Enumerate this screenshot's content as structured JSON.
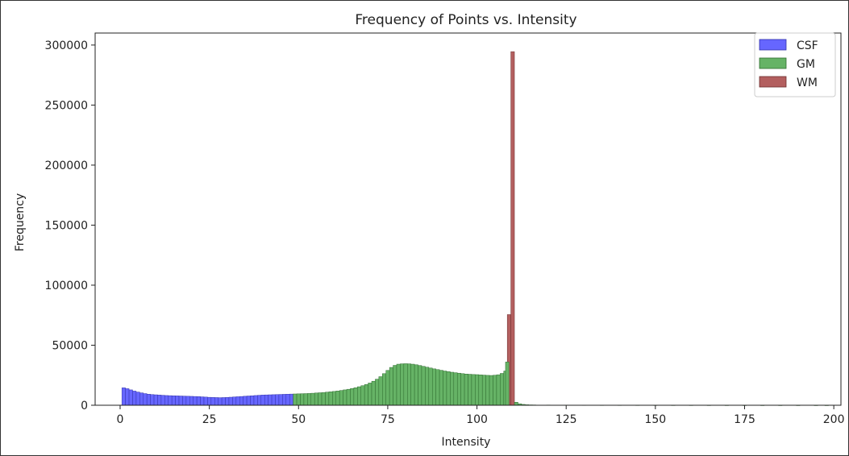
{
  "chart_data": {
    "type": "bar",
    "title": "Frequency of Points vs. Intensity",
    "xlabel": "Intensity",
    "ylabel": "Frequency",
    "xlim": [
      -7,
      202
    ],
    "ylim": [
      0,
      310000
    ],
    "xticks": [
      0,
      25,
      50,
      75,
      100,
      125,
      150,
      175,
      200
    ],
    "yticks": [
      0,
      50000,
      100000,
      150000,
      200000,
      250000,
      300000
    ],
    "legend_position": "top-right",
    "grid": false,
    "series": [
      {
        "name": "CSF",
        "color": "#6666ff",
        "edge": "#3333aa",
        "x": [
          1,
          2,
          3,
          4,
          5,
          6,
          7,
          8,
          9,
          10,
          11,
          12,
          13,
          14,
          15,
          16,
          17,
          18,
          19,
          20,
          21,
          22,
          23,
          24,
          25,
          26,
          27,
          28,
          29,
          30,
          31,
          32,
          33,
          34,
          35,
          36,
          37,
          38,
          39,
          40,
          41,
          42,
          43,
          44,
          45,
          46,
          47,
          48
        ],
        "values": [
          14500,
          13800,
          12800,
          11800,
          11000,
          10300,
          9700,
          9200,
          8900,
          8700,
          8500,
          8300,
          8100,
          8000,
          7900,
          7800,
          7700,
          7600,
          7500,
          7400,
          7300,
          7200,
          7000,
          6800,
          6600,
          6500,
          6400,
          6300,
          6400,
          6500,
          6700,
          6900,
          7100,
          7300,
          7500,
          7700,
          7900,
          8100,
          8300,
          8500,
          8600,
          8700,
          8800,
          8900,
          9000,
          9100,
          9200,
          9300
        ]
      },
      {
        "name": "GM",
        "color": "#66b366",
        "edge": "#2e6b2e",
        "x": [
          49,
          50,
          51,
          52,
          53,
          54,
          55,
          56,
          57,
          58,
          59,
          60,
          61,
          62,
          63,
          64,
          65,
          66,
          67,
          68,
          69,
          70,
          71,
          72,
          73,
          74,
          75,
          76,
          77,
          78,
          79,
          80,
          81,
          82,
          83,
          84,
          85,
          86,
          87,
          88,
          89,
          90,
          91,
          92,
          93,
          94,
          95,
          96,
          97,
          98,
          99,
          100,
          101,
          102,
          103,
          104,
          105,
          106,
          107,
          108
        ],
        "values": [
          9400,
          9500,
          9600,
          9700,
          9800,
          10000,
          10200,
          10400,
          10600,
          10900,
          11200,
          11500,
          11900,
          12300,
          12800,
          13300,
          13900,
          14600,
          15400,
          16300,
          17300,
          18500,
          20000,
          21700,
          23800,
          26300,
          29000,
          31500,
          33200,
          34200,
          34500,
          34600,
          34500,
          34200,
          33700,
          33100,
          32400,
          31700,
          31000,
          30300,
          29700,
          29100,
          28500,
          28000,
          27500,
          27100,
          26700,
          26300,
          26000,
          25800,
          25600,
          25500,
          25300,
          25100,
          24900,
          24800,
          25000,
          25400,
          26500,
          28500
        ]
      },
      {
        "name": "WM",
        "color": "#b35f5f",
        "edge": "#6b2e2e",
        "x": [
          109,
          110
        ],
        "values": [
          75500,
          294500
        ]
      },
      {
        "name": "",
        "color": "#66b366",
        "edge": "#2e6b2e",
        "x": [
          108.5,
          111,
          112,
          113,
          114,
          115
        ],
        "values": [
          36000,
          2500,
          1200,
          700,
          400,
          300
        ]
      },
      {
        "name": "",
        "color": "#66b366",
        "edge": "#2e6b2e",
        "x": [
          116,
          120,
          125,
          130,
          135,
          140,
          145,
          150,
          155,
          160,
          165,
          170,
          175,
          180,
          185,
          190,
          195,
          198
        ],
        "values": [
          250,
          200,
          180,
          150,
          130,
          120,
          110,
          100,
          90,
          80,
          70,
          60,
          55,
          50,
          45,
          40,
          35,
          30
        ]
      }
    ]
  }
}
